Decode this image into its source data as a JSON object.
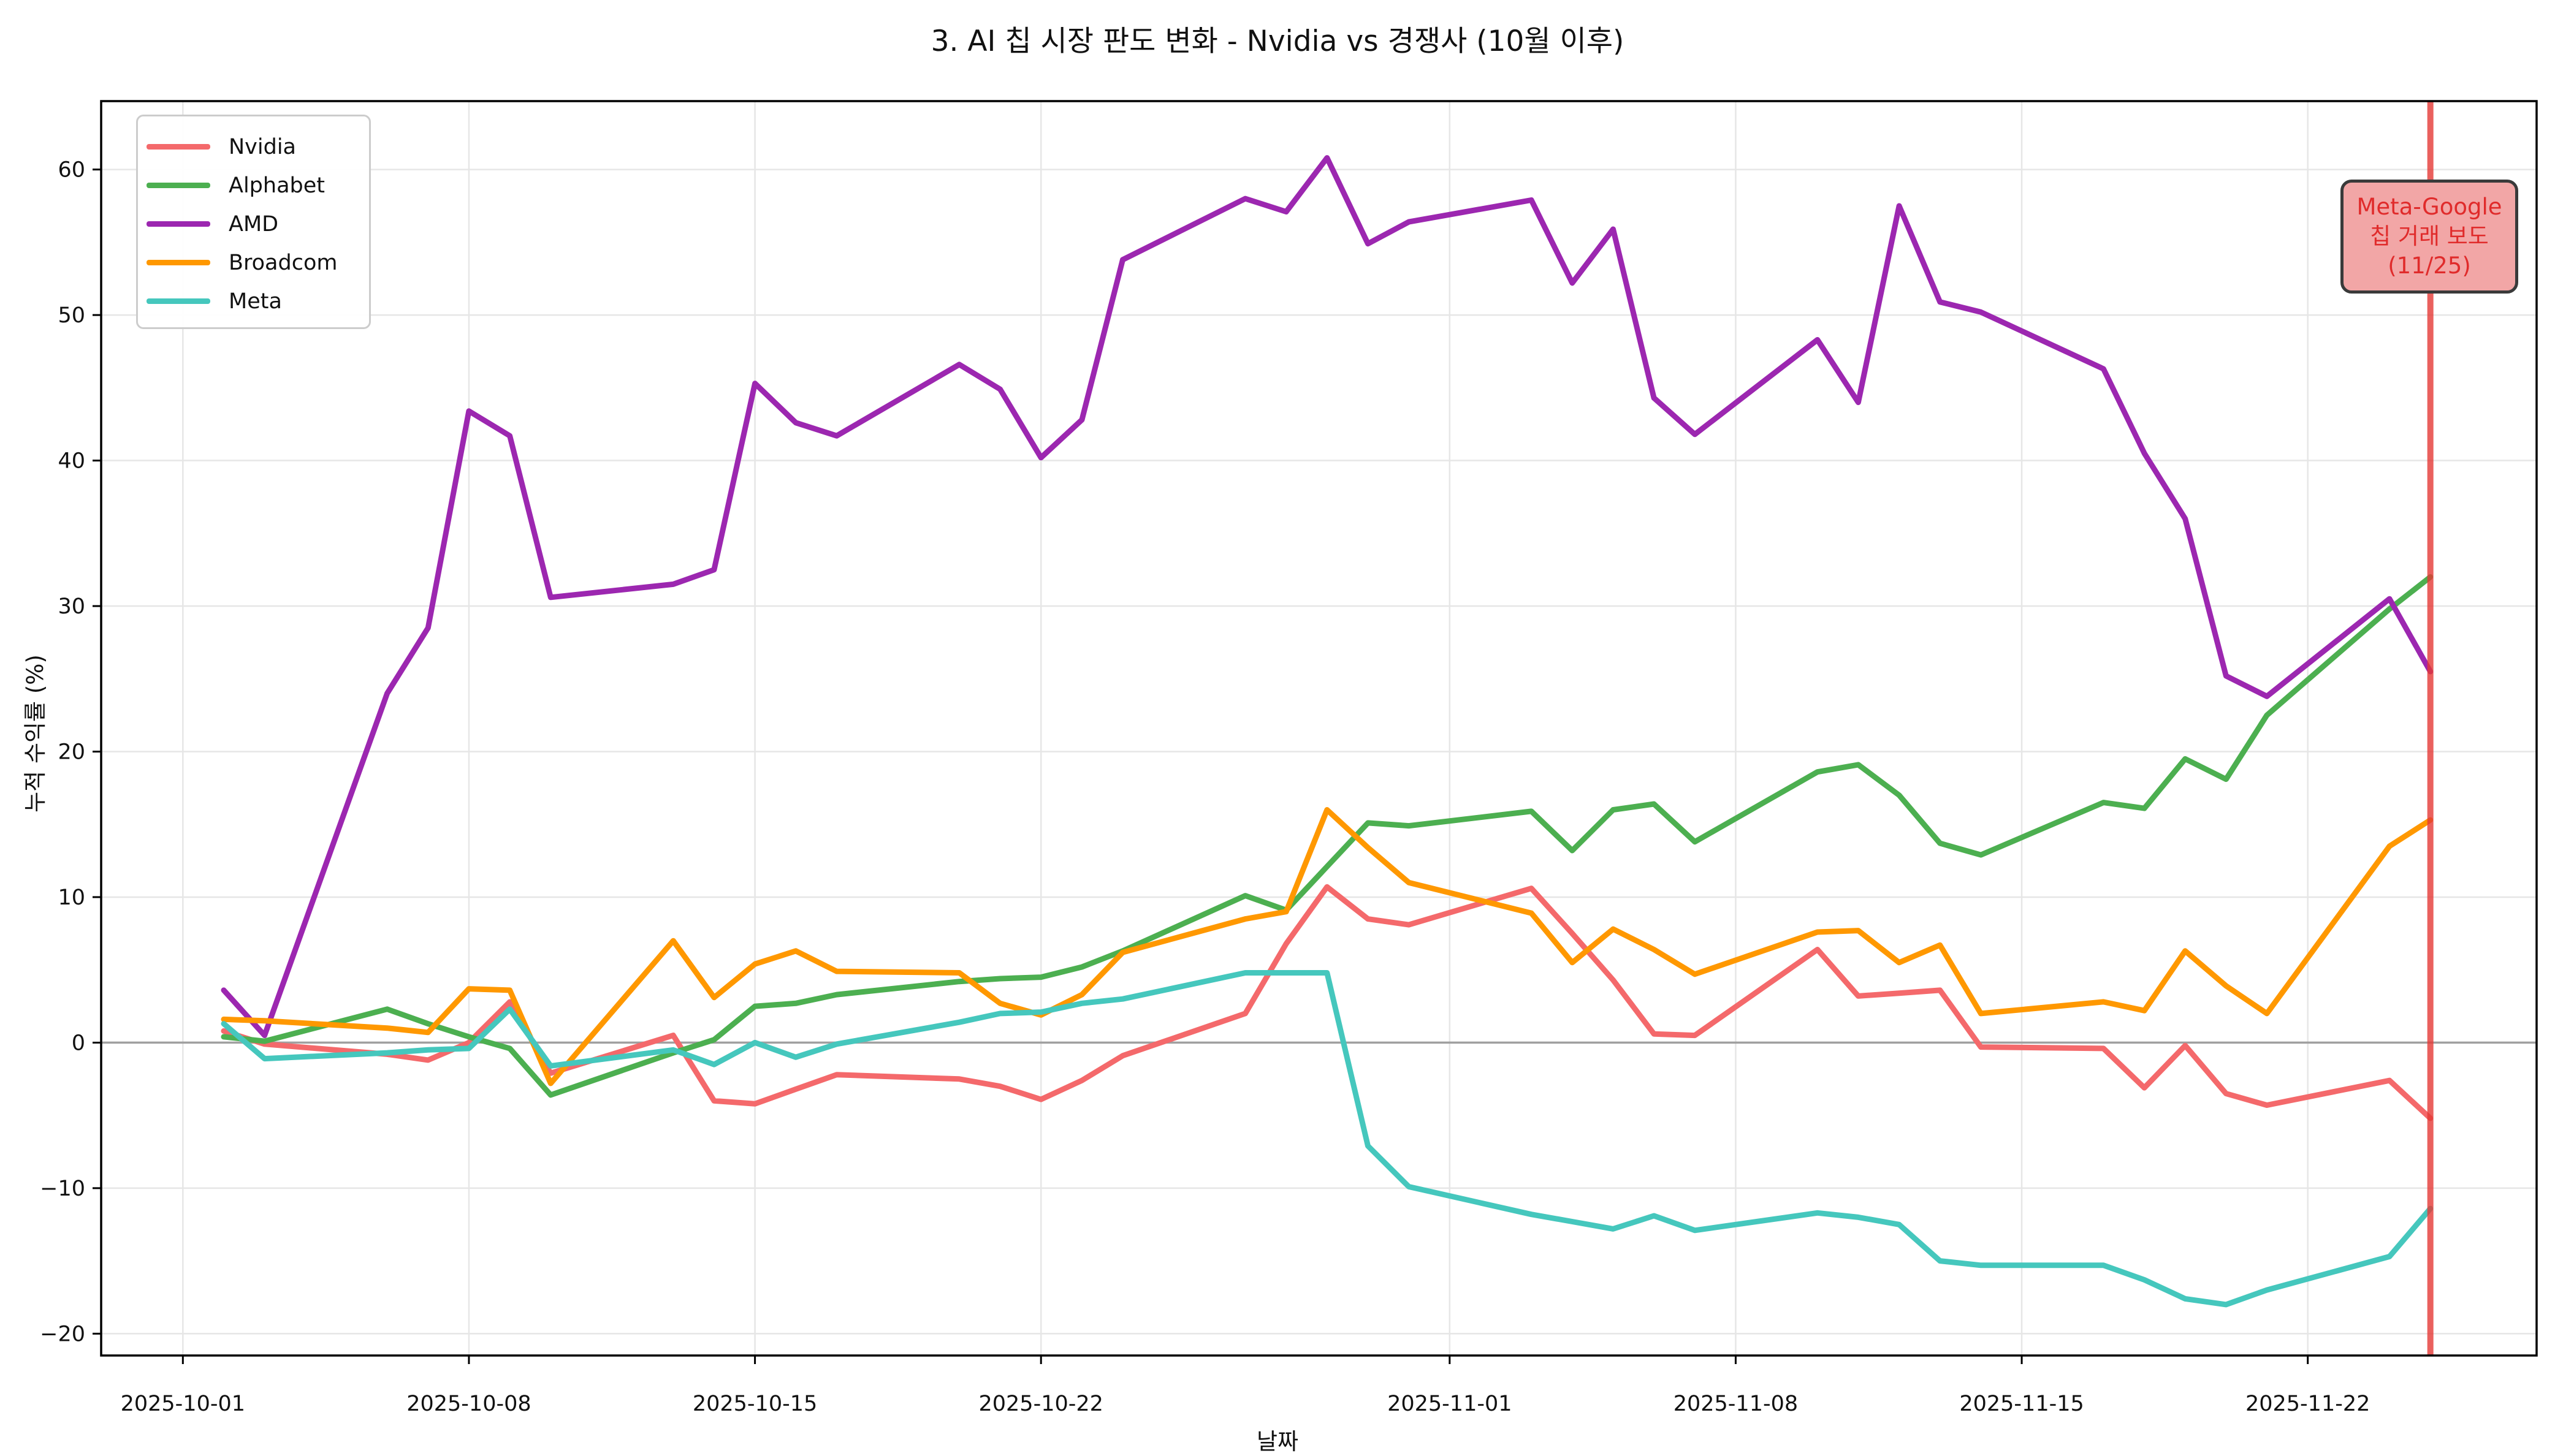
{
  "title": "3. AI 칩 시장 판도 변화 - Nvidia vs 경쟁사 (10월 이후)",
  "chart_data": {
    "type": "line",
    "xlabel": "날짜",
    "ylabel": "누적 수익률 (%)",
    "grid": true,
    "legend_position": "upper left",
    "ylim": [
      -21.5,
      64.7
    ],
    "yticks": [
      {
        "v": -20,
        "label": "−20"
      },
      {
        "v": -10,
        "label": "−10"
      },
      {
        "v": 0,
        "label": "0"
      },
      {
        "v": 10,
        "label": "10"
      },
      {
        "v": 20,
        "label": "20"
      },
      {
        "v": 30,
        "label": "30"
      },
      {
        "v": 40,
        "label": "40"
      },
      {
        "v": 50,
        "label": "50"
      },
      {
        "v": 60,
        "label": "60"
      }
    ],
    "xticks": [
      {
        "date": "2025-10-01",
        "label": "2025-10-01"
      },
      {
        "date": "2025-10-08",
        "label": "2025-10-08"
      },
      {
        "date": "2025-10-15",
        "label": "2025-10-15"
      },
      {
        "date": "2025-10-22",
        "label": "2025-10-22"
      },
      {
        "date": "2025-11-01",
        "label": "2025-11-01"
      },
      {
        "date": "2025-11-08",
        "label": "2025-11-08"
      },
      {
        "date": "2025-11-15",
        "label": "2025-11-15"
      },
      {
        "date": "2025-11-22",
        "label": "2025-11-22"
      }
    ],
    "x_dates": [
      "2025-10-02",
      "2025-10-03",
      "2025-10-06",
      "2025-10-07",
      "2025-10-08",
      "2025-10-09",
      "2025-10-10",
      "2025-10-13",
      "2025-10-14",
      "2025-10-15",
      "2025-10-16",
      "2025-10-17",
      "2025-10-20",
      "2025-10-21",
      "2025-10-22",
      "2025-10-23",
      "2025-10-24",
      "2025-10-27",
      "2025-10-28",
      "2025-10-29",
      "2025-10-30",
      "2025-10-31",
      "2025-11-03",
      "2025-11-04",
      "2025-11-05",
      "2025-11-06",
      "2025-11-07",
      "2025-11-10",
      "2025-11-11",
      "2025-11-12",
      "2025-11-13",
      "2025-11-14",
      "2025-11-17",
      "2025-11-18",
      "2025-11-19",
      "2025-11-20",
      "2025-11-21",
      "2025-11-24",
      "2025-11-25"
    ],
    "series": [
      {
        "name": "Nvidia",
        "color": "#f4696b",
        "values": [
          0.8,
          -0.1,
          -0.8,
          -1.2,
          0.0,
          2.8,
          -2.1,
          0.5,
          -4.0,
          -4.2,
          -3.2,
          -2.2,
          -2.5,
          -3.0,
          -3.9,
          -2.6,
          -0.9,
          2.0,
          6.8,
          10.7,
          8.5,
          8.1,
          10.6,
          7.5,
          4.3,
          0.6,
          0.5,
          6.4,
          3.2,
          3.4,
          3.6,
          -0.3,
          -0.4,
          -3.1,
          -0.2,
          -3.5,
          -4.3,
          -2.6,
          -5.2
        ]
      },
      {
        "name": "Alphabet",
        "color": "#4caf50",
        "values": [
          0.4,
          0.1,
          2.3,
          1.3,
          0.4,
          -0.4,
          -3.6,
          -0.7,
          0.2,
          2.5,
          2.7,
          3.3,
          4.2,
          4.4,
          4.5,
          5.2,
          6.3,
          10.1,
          9.1,
          12.1,
          15.1,
          14.9,
          15.9,
          13.2,
          16.0,
          16.4,
          13.8,
          18.6,
          19.1,
          17.0,
          13.7,
          12.9,
          16.5,
          16.1,
          19.5,
          18.1,
          22.5,
          29.8,
          32.0
        ]
      },
      {
        "name": "AMD",
        "color": "#9c27b0",
        "values": [
          3.6,
          0.5,
          24.0,
          28.5,
          43.4,
          41.7,
          30.6,
          31.5,
          32.5,
          45.3,
          42.6,
          41.7,
          46.6,
          44.9,
          40.2,
          42.8,
          53.8,
          58.0,
          57.1,
          60.8,
          54.9,
          56.4,
          57.9,
          52.2,
          55.9,
          44.3,
          41.8,
          48.3,
          44.0,
          57.5,
          50.9,
          50.2,
          46.3,
          40.5,
          36.0,
          25.2,
          23.8,
          30.5,
          25.5
        ]
      },
      {
        "name": "Broadcom",
        "color": "#ff9800",
        "values": [
          1.6,
          1.5,
          1.0,
          0.7,
          3.7,
          3.6,
          -2.8,
          7.0,
          3.1,
          5.4,
          6.3,
          4.9,
          4.8,
          2.7,
          1.9,
          3.3,
          6.2,
          8.5,
          9.0,
          16.0,
          13.4,
          11.0,
          8.9,
          5.5,
          7.8,
          6.4,
          4.7,
          7.6,
          7.7,
          5.5,
          6.7,
          2.0,
          2.8,
          2.2,
          6.3,
          3.9,
          2.0,
          13.5,
          15.3
        ]
      },
      {
        "name": "Meta",
        "color": "#45c7bd",
        "values": [
          1.3,
          -1.1,
          -0.7,
          -0.5,
          -0.4,
          2.3,
          -1.6,
          -0.5,
          -1.5,
          0.0,
          -1.0,
          -0.1,
          1.4,
          2.0,
          2.1,
          2.7,
          3.0,
          4.8,
          4.8,
          4.8,
          -7.1,
          -9.9,
          -11.8,
          -12.3,
          -12.8,
          -11.9,
          -12.9,
          -11.7,
          -12.0,
          -12.5,
          -15.0,
          -15.3,
          -15.3,
          -16.3,
          -17.6,
          -18.0,
          -17.0,
          -14.7,
          -11.4
        ]
      }
    ],
    "event_line": {
      "date": "2025-11-25",
      "color": "#e53935",
      "opacity": 0.8
    },
    "annotation": {
      "line1": "Meta-Google",
      "line2": "칩 거래 보도",
      "line3": "(11/25)",
      "text_color": "#e02b2b",
      "fill_color": "#f2a6a6",
      "border_color": "#3a3a3a"
    },
    "colors": {
      "grid": "#e6e6e6",
      "zero_line": "#a0a0a0",
      "spine": "#000000",
      "background": "#ffffff"
    }
  }
}
